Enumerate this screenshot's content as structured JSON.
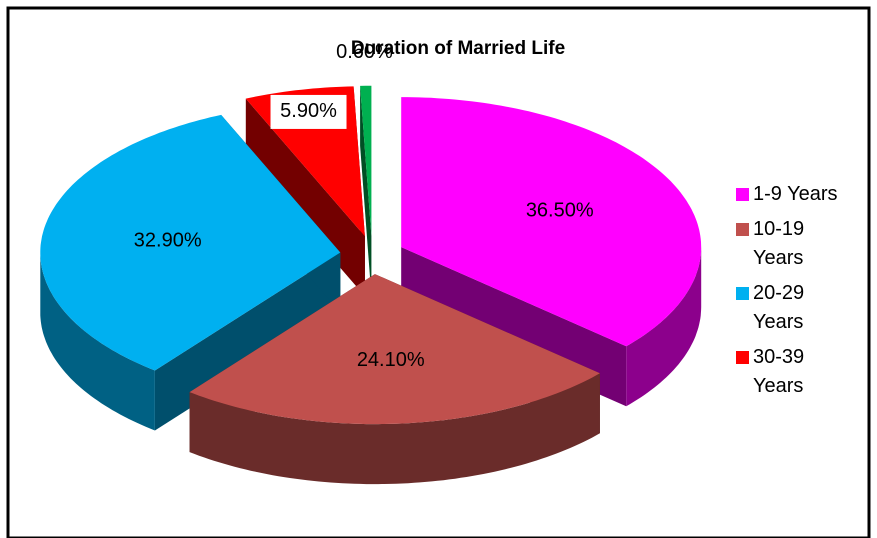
{
  "chart_data": {
    "type": "pie",
    "title": "Duration of Married Life",
    "categories": [
      "1-9 Years",
      "10-19 Years",
      "20-29 Years",
      "30-39 Years",
      null
    ],
    "values": [
      36.5,
      24.1,
      32.9,
      5.9,
      0.6
    ],
    "value_labels": [
      "36.50%",
      "24.10%",
      "32.90%",
      "5.90%",
      "0.60%"
    ],
    "colors": [
      "#ff00ff",
      "#c0504d",
      "#00b0f0",
      "#ff0000",
      "#00b050"
    ],
    "legend": "right"
  }
}
